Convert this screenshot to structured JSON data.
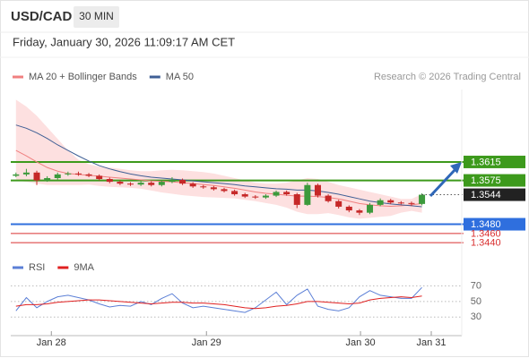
{
  "header": {
    "symbol": "USD/CAD",
    "interval": "30 MIN",
    "datetime": "Friday, January 30, 2026 11:09:17 AM CET",
    "credit": "Research © 2026 Trading Central"
  },
  "chart_data": [
    {
      "type": "candlestick",
      "xlim": [
        -0.5,
        43
      ],
      "ylim": [
        1.3419,
        1.3772
      ],
      "xticks": [
        {
          "value": 3.4,
          "label": "Jan 28"
        },
        {
          "value": 18.3,
          "label": "Jan 29"
        },
        {
          "value": 33.1,
          "label": "Jan 30"
        },
        {
          "value": 39.9,
          "label": "Jan 31"
        }
      ],
      "up_color": "#3c9a3c",
      "down_color": "#c62828",
      "candles": {
        "open": [
          1.3585,
          1.3588,
          1.3592,
          1.3575,
          1.358,
          1.3588,
          1.359,
          1.3588,
          1.3585,
          1.3578,
          1.3572,
          1.3568,
          1.3566,
          1.357,
          1.3565,
          1.3572,
          1.3576,
          1.3568,
          1.3562,
          1.356,
          1.3556,
          1.3552,
          1.3545,
          1.354,
          1.3538,
          1.3542,
          1.355,
          1.3545,
          1.3522,
          1.3565,
          1.3542,
          1.353,
          1.3518,
          1.351,
          1.3505,
          1.3522,
          1.3532,
          1.3527,
          1.3526,
          1.3524
        ],
        "high": [
          1.3592,
          1.36,
          1.3596,
          1.3584,
          1.3592,
          1.3594,
          1.3594,
          1.3591,
          1.3588,
          1.3581,
          1.3575,
          1.3571,
          1.3573,
          1.3573,
          1.3576,
          1.3582,
          1.3579,
          1.3571,
          1.3565,
          1.3563,
          1.3559,
          1.3555,
          1.3548,
          1.3543,
          1.3545,
          1.3553,
          1.3553,
          1.3548,
          1.357,
          1.3568,
          1.3545,
          1.3533,
          1.3521,
          1.3513,
          1.3526,
          1.3536,
          1.3535,
          1.353,
          1.3529,
          1.3547
        ],
        "low": [
          1.3582,
          1.3584,
          1.3565,
          1.3572,
          1.3577,
          1.3585,
          1.3585,
          1.3582,
          1.3575,
          1.3569,
          1.3565,
          1.3563,
          1.3563,
          1.3562,
          1.3562,
          1.3569,
          1.3565,
          1.3559,
          1.3557,
          1.3553,
          1.3549,
          1.3542,
          1.3537,
          1.3535,
          1.3535,
          1.3539,
          1.3542,
          1.3515,
          1.352,
          1.3538,
          1.3527,
          1.3514,
          1.3506,
          1.35,
          1.3502,
          1.3519,
          1.3524,
          1.3523,
          1.352,
          1.3521
        ],
        "close": [
          1.3588,
          1.3592,
          1.3575,
          1.358,
          1.3588,
          1.359,
          1.3588,
          1.3585,
          1.3578,
          1.3572,
          1.3568,
          1.3566,
          1.357,
          1.3565,
          1.3572,
          1.3576,
          1.3568,
          1.3562,
          1.356,
          1.3556,
          1.3552,
          1.3545,
          1.354,
          1.3538,
          1.3542,
          1.355,
          1.3545,
          1.3522,
          1.3565,
          1.3542,
          1.353,
          1.3518,
          1.351,
          1.3505,
          1.3522,
          1.3532,
          1.3527,
          1.3526,
          1.3524,
          1.3544
        ]
      },
      "series": [
        {
          "name": "MA 20 + Bollinger Bands",
          "color": "#f08080",
          "band_color": "#fde0e0",
          "values": [
            1.364,
            1.3628,
            1.3615,
            1.3603,
            1.3595,
            1.359,
            1.3588,
            1.3586,
            1.3584,
            1.3582,
            1.358,
            1.3578,
            1.3576,
            1.3574,
            1.3573,
            1.3572,
            1.357,
            1.3568,
            1.3566,
            1.3564,
            1.3561,
            1.3558,
            1.3554,
            1.355,
            1.3547,
            1.3545,
            1.3543,
            1.3541,
            1.3541,
            1.354,
            1.3538,
            1.3535,
            1.353,
            1.3525,
            1.3522,
            1.352,
            1.3519,
            1.352,
            1.3522,
            1.3525
          ],
          "upper": [
            1.375,
            1.3735,
            1.3715,
            1.369,
            1.3665,
            1.364,
            1.362,
            1.361,
            1.3605,
            1.3603,
            1.36,
            1.3597,
            1.3595,
            1.3595,
            1.3597,
            1.3598,
            1.3597,
            1.3595,
            1.3593,
            1.359,
            1.3585,
            1.358,
            1.3575,
            1.357,
            1.3568,
            1.3568,
            1.357,
            1.3575,
            1.358,
            1.3578,
            1.3572,
            1.3565,
            1.356,
            1.3555,
            1.355,
            1.3545,
            1.354,
            1.3535,
            1.3535,
            1.3545
          ],
          "lower": [
            1.3575,
            1.3572,
            1.3568,
            1.3565,
            1.3565,
            1.3565,
            1.3565,
            1.3566,
            1.3563,
            1.3561,
            1.356,
            1.3559,
            1.3557,
            1.3553,
            1.3549,
            1.3546,
            1.3543,
            1.3541,
            1.3539,
            1.3538,
            1.3537,
            1.3536,
            1.3533,
            1.353,
            1.3526,
            1.3522,
            1.3516,
            1.3507,
            1.3502,
            1.3502,
            1.3504,
            1.35,
            1.3495,
            1.3492,
            1.3494,
            1.3496,
            1.3498,
            1.3505,
            1.3509,
            1.3505
          ]
        },
        {
          "name": "MA 50",
          "color": "#3f5f95",
          "values": [
            1.3695,
            1.3688,
            1.3678,
            1.3666,
            1.3652,
            1.364,
            1.3628,
            1.3617,
            1.3607,
            1.36,
            1.3594,
            1.3589,
            1.3585,
            1.3582,
            1.358,
            1.3578,
            1.3576,
            1.3574,
            1.3572,
            1.357,
            1.3568,
            1.3566,
            1.3563,
            1.3561,
            1.3559,
            1.3557,
            1.3556,
            1.3554,
            1.3554,
            1.3552,
            1.3549,
            1.3545,
            1.354,
            1.3535,
            1.353,
            1.3527,
            1.3524,
            1.3522,
            1.352,
            1.3518
          ]
        }
      ],
      "levels": [
        {
          "value": 1.3615,
          "color": "#3d9a1c",
          "style": "box"
        },
        {
          "value": 1.3575,
          "color": "#3d9a1c",
          "style": "box"
        },
        {
          "value": 1.348,
          "label": "1.3480",
          "color": "#2f6fde",
          "style": "box"
        },
        {
          "value": 1.346,
          "label": "1.3460",
          "color": "#d93030",
          "style": "text"
        },
        {
          "value": 1.344,
          "label": "1.3440",
          "color": "#d93030",
          "style": "text"
        }
      ],
      "current": {
        "value": 1.3544,
        "color": "#222222"
      }
    },
    {
      "type": "line",
      "ylim": [
        12,
        90
      ],
      "yticks": [
        70,
        50,
        30
      ],
      "series": [
        {
          "name": "RSI",
          "color": "#5b7fd6",
          "values": [
            38,
            55,
            42,
            50,
            56,
            58,
            55,
            52,
            47,
            43,
            45,
            44,
            50,
            46,
            54,
            60,
            48,
            42,
            44,
            42,
            40,
            38,
            36,
            42,
            52,
            62,
            46,
            58,
            66,
            44,
            40,
            38,
            42,
            56,
            64,
            58,
            56,
            54,
            54,
            68
          ]
        },
        {
          "name": "9MA",
          "color": "#e02020",
          "values": [
            44,
            46,
            46,
            47,
            49,
            50,
            51,
            52,
            52,
            51,
            50,
            49,
            48,
            47,
            48,
            49,
            49,
            48,
            48,
            47,
            46,
            44,
            42,
            41,
            42,
            44,
            45,
            47,
            50,
            50,
            49,
            48,
            47,
            48,
            52,
            54,
            55,
            56,
            55,
            57
          ]
        }
      ]
    }
  ]
}
